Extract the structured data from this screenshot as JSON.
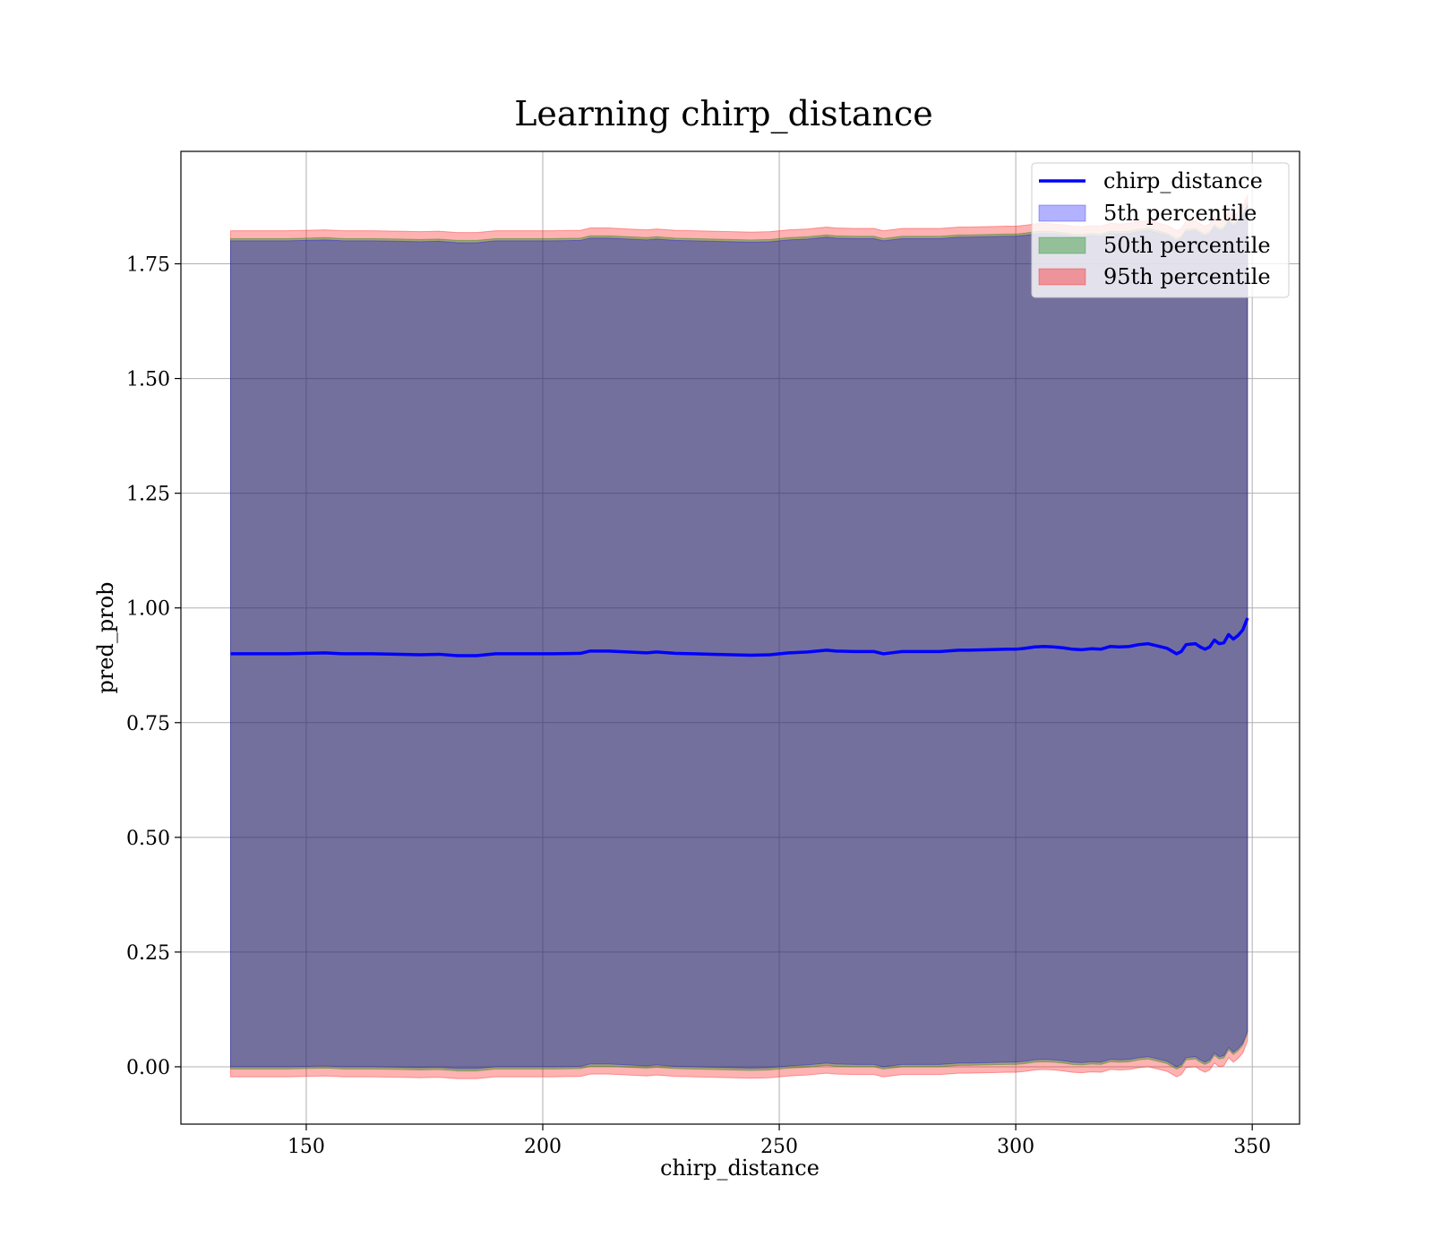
{
  "chart_data": {
    "type": "area",
    "title": "Learning chirp_distance",
    "xlabel": "chirp_distance",
    "ylabel": "pred_prob",
    "xlim": [
      123.5,
      360
    ],
    "ylim": [
      -0.125,
      1.995
    ],
    "xticks": [
      150,
      200,
      250,
      300,
      350
    ],
    "xtick_labels": [
      "150",
      "200",
      "250",
      "300",
      "350"
    ],
    "yticks": [
      0.0,
      0.25,
      0.5,
      0.75,
      1.0,
      1.25,
      1.5,
      1.75
    ],
    "ytick_labels": [
      "0.00",
      "0.25",
      "0.50",
      "0.75",
      "1.00",
      "1.25",
      "1.50",
      "1.75"
    ],
    "grid": true,
    "legend_position": "top-right",
    "colors": {
      "line": "#0000ff",
      "p5": "#0000ff",
      "p50": "#008000",
      "p95": "#ff0000"
    },
    "x": [
      134,
      140,
      146,
      150,
      154,
      158,
      164,
      170,
      174,
      178,
      182,
      186,
      190,
      196,
      202,
      208,
      210,
      214,
      218,
      222,
      224,
      228,
      232,
      236,
      240,
      244,
      248,
      252,
      256,
      260,
      262,
      266,
      270,
      272,
      276,
      280,
      284,
      288,
      290,
      294,
      298,
      300,
      302,
      304,
      306,
      308,
      310,
      312,
      314,
      316,
      318,
      320,
      322,
      324,
      326,
      328,
      330,
      332,
      334,
      335,
      336,
      337,
      338,
      339,
      340,
      341,
      342,
      343,
      344,
      345,
      346,
      347,
      348,
      349
    ],
    "series": [
      {
        "name": "chirp_distance",
        "kind": "line",
        "values": [
          0.9,
          0.9,
          0.9,
          0.901,
          0.902,
          0.9,
          0.9,
          0.899,
          0.898,
          0.899,
          0.896,
          0.896,
          0.9,
          0.9,
          0.9,
          0.901,
          0.906,
          0.906,
          0.904,
          0.902,
          0.904,
          0.901,
          0.9,
          0.899,
          0.898,
          0.897,
          0.898,
          0.902,
          0.904,
          0.908,
          0.906,
          0.905,
          0.905,
          0.9,
          0.905,
          0.905,
          0.905,
          0.908,
          0.908,
          0.909,
          0.91,
          0.91,
          0.912,
          0.915,
          0.916,
          0.915,
          0.913,
          0.91,
          0.909,
          0.911,
          0.91,
          0.916,
          0.915,
          0.916,
          0.92,
          0.922,
          0.917,
          0.912,
          0.9,
          0.905,
          0.92,
          0.921,
          0.922,
          0.915,
          0.91,
          0.915,
          0.93,
          0.922,
          0.924,
          0.942,
          0.932,
          0.94,
          0.952,
          0.978
        ]
      },
      {
        "name": "5th percentile",
        "kind": "band",
        "spread": 0.9
      },
      {
        "name": "50th percentile",
        "kind": "band",
        "spread": 0.905
      },
      {
        "name": "95th percentile",
        "kind": "band",
        "spread": 0.922
      }
    ],
    "legend": [
      "chirp_distance",
      "5th percentile",
      "50th percentile",
      "95th percentile"
    ]
  }
}
